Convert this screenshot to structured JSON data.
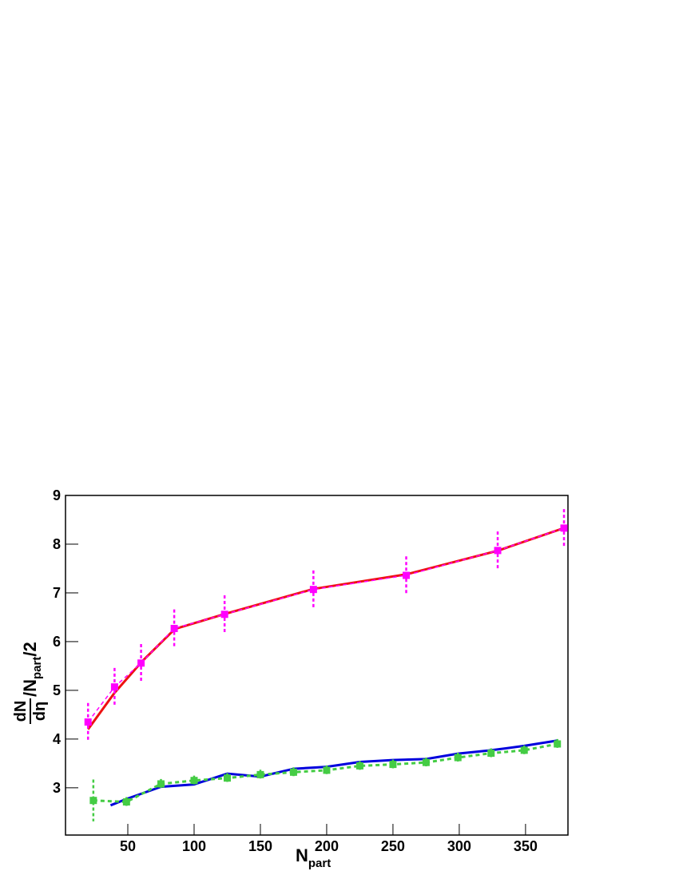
{
  "chart_data": {
    "type": "line",
    "x_label": {
      "main": "N",
      "sub": "part"
    },
    "y_label": {
      "numerator": "dN",
      "denominator": "dη",
      "main": "/N",
      "sub": "part",
      "tail": "/2"
    },
    "xlim": [
      3,
      382
    ],
    "ylim": [
      2.03,
      9
    ],
    "xticks": [
      50,
      100,
      150,
      200,
      250,
      300,
      350
    ],
    "yticks": [
      3,
      4,
      5,
      6,
      7,
      8,
      9
    ],
    "series": [
      {
        "color": "#ee1111",
        "style": "solid",
        "x": [
          20,
          40,
          61,
          85.5,
          123.5,
          190,
          260,
          329.5,
          380
        ],
        "values": [
          4.2,
          4.95,
          5.6,
          6.26,
          6.57,
          7.08,
          7.38,
          7.87,
          8.34
        ]
      },
      {
        "color": "#ff00ff",
        "style": "dashed-markers",
        "x": [
          20,
          40,
          60,
          85,
          123,
          190,
          260,
          329,
          379
        ],
        "values": [
          4.35,
          5.07,
          5.56,
          6.27,
          6.56,
          7.07,
          7.36,
          7.87,
          8.33
        ],
        "errors": [
          0.39,
          0.39,
          0.39,
          0.39,
          0.39,
          0.39,
          0.39,
          0.39,
          0.39
        ]
      },
      {
        "color": "#0000dd",
        "style": "solid",
        "x": [
          37,
          49,
          75,
          100,
          125,
          150,
          175,
          200,
          225,
          250,
          275,
          299,
          324,
          349,
          374
        ],
        "values": [
          2.64,
          2.77,
          3.02,
          3.07,
          3.29,
          3.23,
          3.39,
          3.43,
          3.53,
          3.57,
          3.59,
          3.7,
          3.77,
          3.86,
          3.97
        ]
      },
      {
        "color": "#44cc44",
        "style": "dashed-markers",
        "x": [
          24,
          49,
          75,
          100,
          125,
          150,
          175,
          200,
          225,
          250,
          275,
          299,
          324,
          349,
          374
        ],
        "values": [
          2.74,
          2.71,
          3.08,
          3.15,
          3.2,
          3.27,
          3.32,
          3.36,
          3.45,
          3.48,
          3.52,
          3.62,
          3.71,
          3.77,
          3.9
        ],
        "errors": [
          0.43,
          0.1,
          0.1,
          0.1,
          0.1,
          0.1,
          0.1,
          0.1,
          0.1,
          0.1,
          0.1,
          0.1,
          0.1,
          0.1,
          0.1
        ]
      }
    ]
  }
}
